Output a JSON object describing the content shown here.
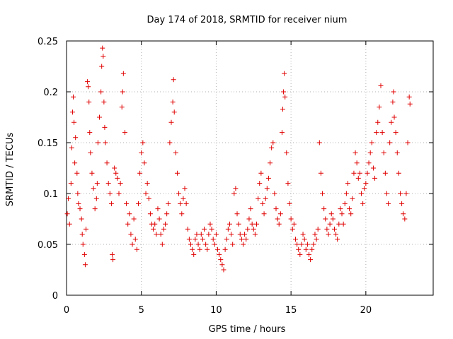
{
  "chart_data": {
    "type": "scatter",
    "title": "Day 174 of 2018, SRMTID for receiver nium",
    "xlabel": "GPS time / hours",
    "ylabel": "SRMTID / TECUs",
    "xlim": [
      0,
      24.5
    ],
    "ylim": [
      0,
      0.25
    ],
    "xticks": [
      0,
      5,
      10,
      15,
      20
    ],
    "xtick_labels": [
      "0",
      "5",
      "10",
      "15",
      "20"
    ],
    "yticks": [
      0,
      0.05,
      0.1,
      0.15,
      0.2,
      0.25
    ],
    "ytick_labels": [
      "0",
      "0.05",
      "0.1",
      "0.15",
      "0.2",
      "0.25"
    ],
    "grid": true,
    "marker": "+",
    "color": "#e00000",
    "series": [
      {
        "name": "SRMTID",
        "points": [
          [
            0.05,
            0.08
          ],
          [
            0.12,
            0.095
          ],
          [
            0.2,
            0.07
          ],
          [
            0.3,
            0.11
          ],
          [
            0.35,
            0.145
          ],
          [
            0.4,
            0.18
          ],
          [
            0.45,
            0.195
          ],
          [
            0.5,
            0.17
          ],
          [
            0.55,
            0.13
          ],
          [
            0.6,
            0.155
          ],
          [
            0.7,
            0.12
          ],
          [
            0.75,
            0.1
          ],
          [
            0.8,
            0.09
          ],
          [
            0.9,
            0.085
          ],
          [
            1.0,
            0.075
          ],
          [
            1.05,
            0.06
          ],
          [
            1.1,
            0.05
          ],
          [
            1.2,
            0.04
          ],
          [
            1.25,
            0.03
          ],
          [
            1.3,
            0.065
          ],
          [
            1.4,
            0.21
          ],
          [
            1.45,
            0.205
          ],
          [
            1.5,
            0.19
          ],
          [
            1.55,
            0.16
          ],
          [
            1.6,
            0.14
          ],
          [
            1.7,
            0.12
          ],
          [
            1.8,
            0.105
          ],
          [
            1.9,
            0.085
          ],
          [
            2.0,
            0.095
          ],
          [
            2.05,
            0.11
          ],
          [
            2.1,
            0.15
          ],
          [
            2.2,
            0.175
          ],
          [
            2.3,
            0.2
          ],
          [
            2.35,
            0.225
          ],
          [
            2.4,
            0.243
          ],
          [
            2.45,
            0.235
          ],
          [
            2.5,
            0.19
          ],
          [
            2.55,
            0.165
          ],
          [
            2.6,
            0.15
          ],
          [
            2.7,
            0.13
          ],
          [
            2.8,
            0.11
          ],
          [
            2.9,
            0.1
          ],
          [
            3.0,
            0.09
          ],
          [
            3.05,
            0.04
          ],
          [
            3.1,
            0.035
          ],
          [
            3.2,
            0.125
          ],
          [
            3.3,
            0.12
          ],
          [
            3.4,
            0.115
          ],
          [
            3.5,
            0.1
          ],
          [
            3.6,
            0.11
          ],
          [
            3.7,
            0.185
          ],
          [
            3.75,
            0.2
          ],
          [
            3.8,
            0.218
          ],
          [
            3.9,
            0.16
          ],
          [
            4.0,
            0.09
          ],
          [
            4.1,
            0.07
          ],
          [
            4.2,
            0.08
          ],
          [
            4.3,
            0.06
          ],
          [
            4.4,
            0.05
          ],
          [
            4.5,
            0.075
          ],
          [
            4.6,
            0.055
          ],
          [
            4.7,
            0.045
          ],
          [
            4.8,
            0.09
          ],
          [
            4.9,
            0.12
          ],
          [
            5.0,
            0.14
          ],
          [
            5.1,
            0.15
          ],
          [
            5.2,
            0.13
          ],
          [
            5.3,
            0.1
          ],
          [
            5.4,
            0.11
          ],
          [
            5.5,
            0.095
          ],
          [
            5.6,
            0.08
          ],
          [
            5.7,
            0.07
          ],
          [
            5.8,
            0.065
          ],
          [
            5.9,
            0.07
          ],
          [
            6.0,
            0.06
          ],
          [
            6.1,
            0.085
          ],
          [
            6.2,
            0.075
          ],
          [
            6.3,
            0.06
          ],
          [
            6.4,
            0.05
          ],
          [
            6.5,
            0.065
          ],
          [
            6.6,
            0.07
          ],
          [
            6.7,
            0.08
          ],
          [
            6.8,
            0.09
          ],
          [
            6.9,
            0.15
          ],
          [
            7.0,
            0.17
          ],
          [
            7.1,
            0.19
          ],
          [
            7.15,
            0.212
          ],
          [
            7.2,
            0.18
          ],
          [
            7.3,
            0.14
          ],
          [
            7.4,
            0.12
          ],
          [
            7.5,
            0.1
          ],
          [
            7.6,
            0.09
          ],
          [
            7.7,
            0.08
          ],
          [
            7.8,
            0.095
          ],
          [
            7.9,
            0.105
          ],
          [
            8.0,
            0.09
          ],
          [
            8.1,
            0.065
          ],
          [
            8.2,
            0.055
          ],
          [
            8.3,
            0.05
          ],
          [
            8.4,
            0.045
          ],
          [
            8.5,
            0.04
          ],
          [
            8.6,
            0.055
          ],
          [
            8.7,
            0.06
          ],
          [
            8.8,
            0.05
          ],
          [
            8.9,
            0.045
          ],
          [
            9.0,
            0.06
          ],
          [
            9.1,
            0.055
          ],
          [
            9.2,
            0.065
          ],
          [
            9.3,
            0.05
          ],
          [
            9.4,
            0.045
          ],
          [
            9.5,
            0.06
          ],
          [
            9.6,
            0.07
          ],
          [
            9.7,
            0.065
          ],
          [
            9.8,
            0.055
          ],
          [
            9.9,
            0.05
          ],
          [
            10.0,
            0.06
          ],
          [
            10.1,
            0.045
          ],
          [
            10.2,
            0.04
          ],
          [
            10.3,
            0.035
          ],
          [
            10.4,
            0.03
          ],
          [
            10.5,
            0.025
          ],
          [
            10.6,
            0.045
          ],
          [
            10.7,
            0.055
          ],
          [
            10.8,
            0.065
          ],
          [
            10.9,
            0.07
          ],
          [
            11.0,
            0.06
          ],
          [
            11.1,
            0.05
          ],
          [
            11.2,
            0.1
          ],
          [
            11.3,
            0.105
          ],
          [
            11.4,
            0.08
          ],
          [
            11.5,
            0.07
          ],
          [
            11.6,
            0.06
          ],
          [
            11.7,
            0.055
          ],
          [
            11.8,
            0.05
          ],
          [
            11.9,
            0.06
          ],
          [
            12.0,
            0.055
          ],
          [
            12.1,
            0.065
          ],
          [
            12.2,
            0.075
          ],
          [
            12.3,
            0.085
          ],
          [
            12.4,
            0.07
          ],
          [
            12.5,
            0.065
          ],
          [
            12.6,
            0.06
          ],
          [
            12.7,
            0.07
          ],
          [
            12.8,
            0.095
          ],
          [
            12.9,
            0.11
          ],
          [
            13.0,
            0.12
          ],
          [
            13.1,
            0.09
          ],
          [
            13.2,
            0.08
          ],
          [
            13.3,
            0.095
          ],
          [
            13.4,
            0.105
          ],
          [
            13.5,
            0.115
          ],
          [
            13.6,
            0.13
          ],
          [
            13.7,
            0.145
          ],
          [
            13.8,
            0.15
          ],
          [
            13.9,
            0.1
          ],
          [
            14.0,
            0.085
          ],
          [
            14.1,
            0.075
          ],
          [
            14.2,
            0.07
          ],
          [
            14.3,
            0.08
          ],
          [
            14.4,
            0.16
          ],
          [
            14.45,
            0.183
          ],
          [
            14.5,
            0.2
          ],
          [
            14.55,
            0.218
          ],
          [
            14.6,
            0.195
          ],
          [
            14.7,
            0.14
          ],
          [
            14.8,
            0.11
          ],
          [
            14.9,
            0.09
          ],
          [
            15.0,
            0.075
          ],
          [
            15.1,
            0.065
          ],
          [
            15.2,
            0.07
          ],
          [
            15.3,
            0.055
          ],
          [
            15.4,
            0.05
          ],
          [
            15.5,
            0.045
          ],
          [
            15.6,
            0.04
          ],
          [
            15.7,
            0.05
          ],
          [
            15.8,
            0.06
          ],
          [
            15.9,
            0.055
          ],
          [
            16.0,
            0.045
          ],
          [
            16.1,
            0.05
          ],
          [
            16.2,
            0.04
          ],
          [
            16.3,
            0.035
          ],
          [
            16.4,
            0.045
          ],
          [
            16.5,
            0.05
          ],
          [
            16.6,
            0.06
          ],
          [
            16.7,
            0.055
          ],
          [
            16.8,
            0.065
          ],
          [
            16.9,
            0.15
          ],
          [
            17.0,
            0.12
          ],
          [
            17.1,
            0.1
          ],
          [
            17.2,
            0.085
          ],
          [
            17.3,
            0.075
          ],
          [
            17.4,
            0.065
          ],
          [
            17.5,
            0.06
          ],
          [
            17.6,
            0.07
          ],
          [
            17.7,
            0.08
          ],
          [
            17.8,
            0.075
          ],
          [
            17.9,
            0.065
          ],
          [
            18.0,
            0.06
          ],
          [
            18.1,
            0.055
          ],
          [
            18.2,
            0.07
          ],
          [
            18.3,
            0.085
          ],
          [
            18.4,
            0.08
          ],
          [
            18.5,
            0.07
          ],
          [
            18.6,
            0.09
          ],
          [
            18.7,
            0.1
          ],
          [
            18.8,
            0.11
          ],
          [
            18.9,
            0.085
          ],
          [
            19.0,
            0.08
          ],
          [
            19.1,
            0.095
          ],
          [
            19.2,
            0.12
          ],
          [
            19.3,
            0.14
          ],
          [
            19.4,
            0.13
          ],
          [
            19.5,
            0.115
          ],
          [
            19.6,
            0.12
          ],
          [
            19.7,
            0.1
          ],
          [
            19.8,
            0.09
          ],
          [
            19.9,
            0.105
          ],
          [
            20.0,
            0.11
          ],
          [
            20.1,
            0.12
          ],
          [
            20.2,
            0.13
          ],
          [
            20.3,
            0.14
          ],
          [
            20.4,
            0.15
          ],
          [
            20.5,
            0.125
          ],
          [
            20.6,
            0.115
          ],
          [
            20.7,
            0.16
          ],
          [
            20.8,
            0.17
          ],
          [
            20.9,
            0.185
          ],
          [
            21.0,
            0.206
          ],
          [
            21.1,
            0.16
          ],
          [
            21.2,
            0.14
          ],
          [
            21.3,
            0.12
          ],
          [
            21.4,
            0.1
          ],
          [
            21.5,
            0.09
          ],
          [
            21.6,
            0.15
          ],
          [
            21.7,
            0.17
          ],
          [
            21.8,
            0.19
          ],
          [
            21.85,
            0.2
          ],
          [
            21.9,
            0.175
          ],
          [
            22.0,
            0.16
          ],
          [
            22.1,
            0.14
          ],
          [
            22.2,
            0.12
          ],
          [
            22.3,
            0.1
          ],
          [
            22.4,
            0.09
          ],
          [
            22.5,
            0.08
          ],
          [
            22.6,
            0.075
          ],
          [
            22.7,
            0.1
          ],
          [
            22.8,
            0.15
          ],
          [
            22.9,
            0.195
          ],
          [
            22.95,
            0.188
          ]
        ]
      }
    ]
  }
}
